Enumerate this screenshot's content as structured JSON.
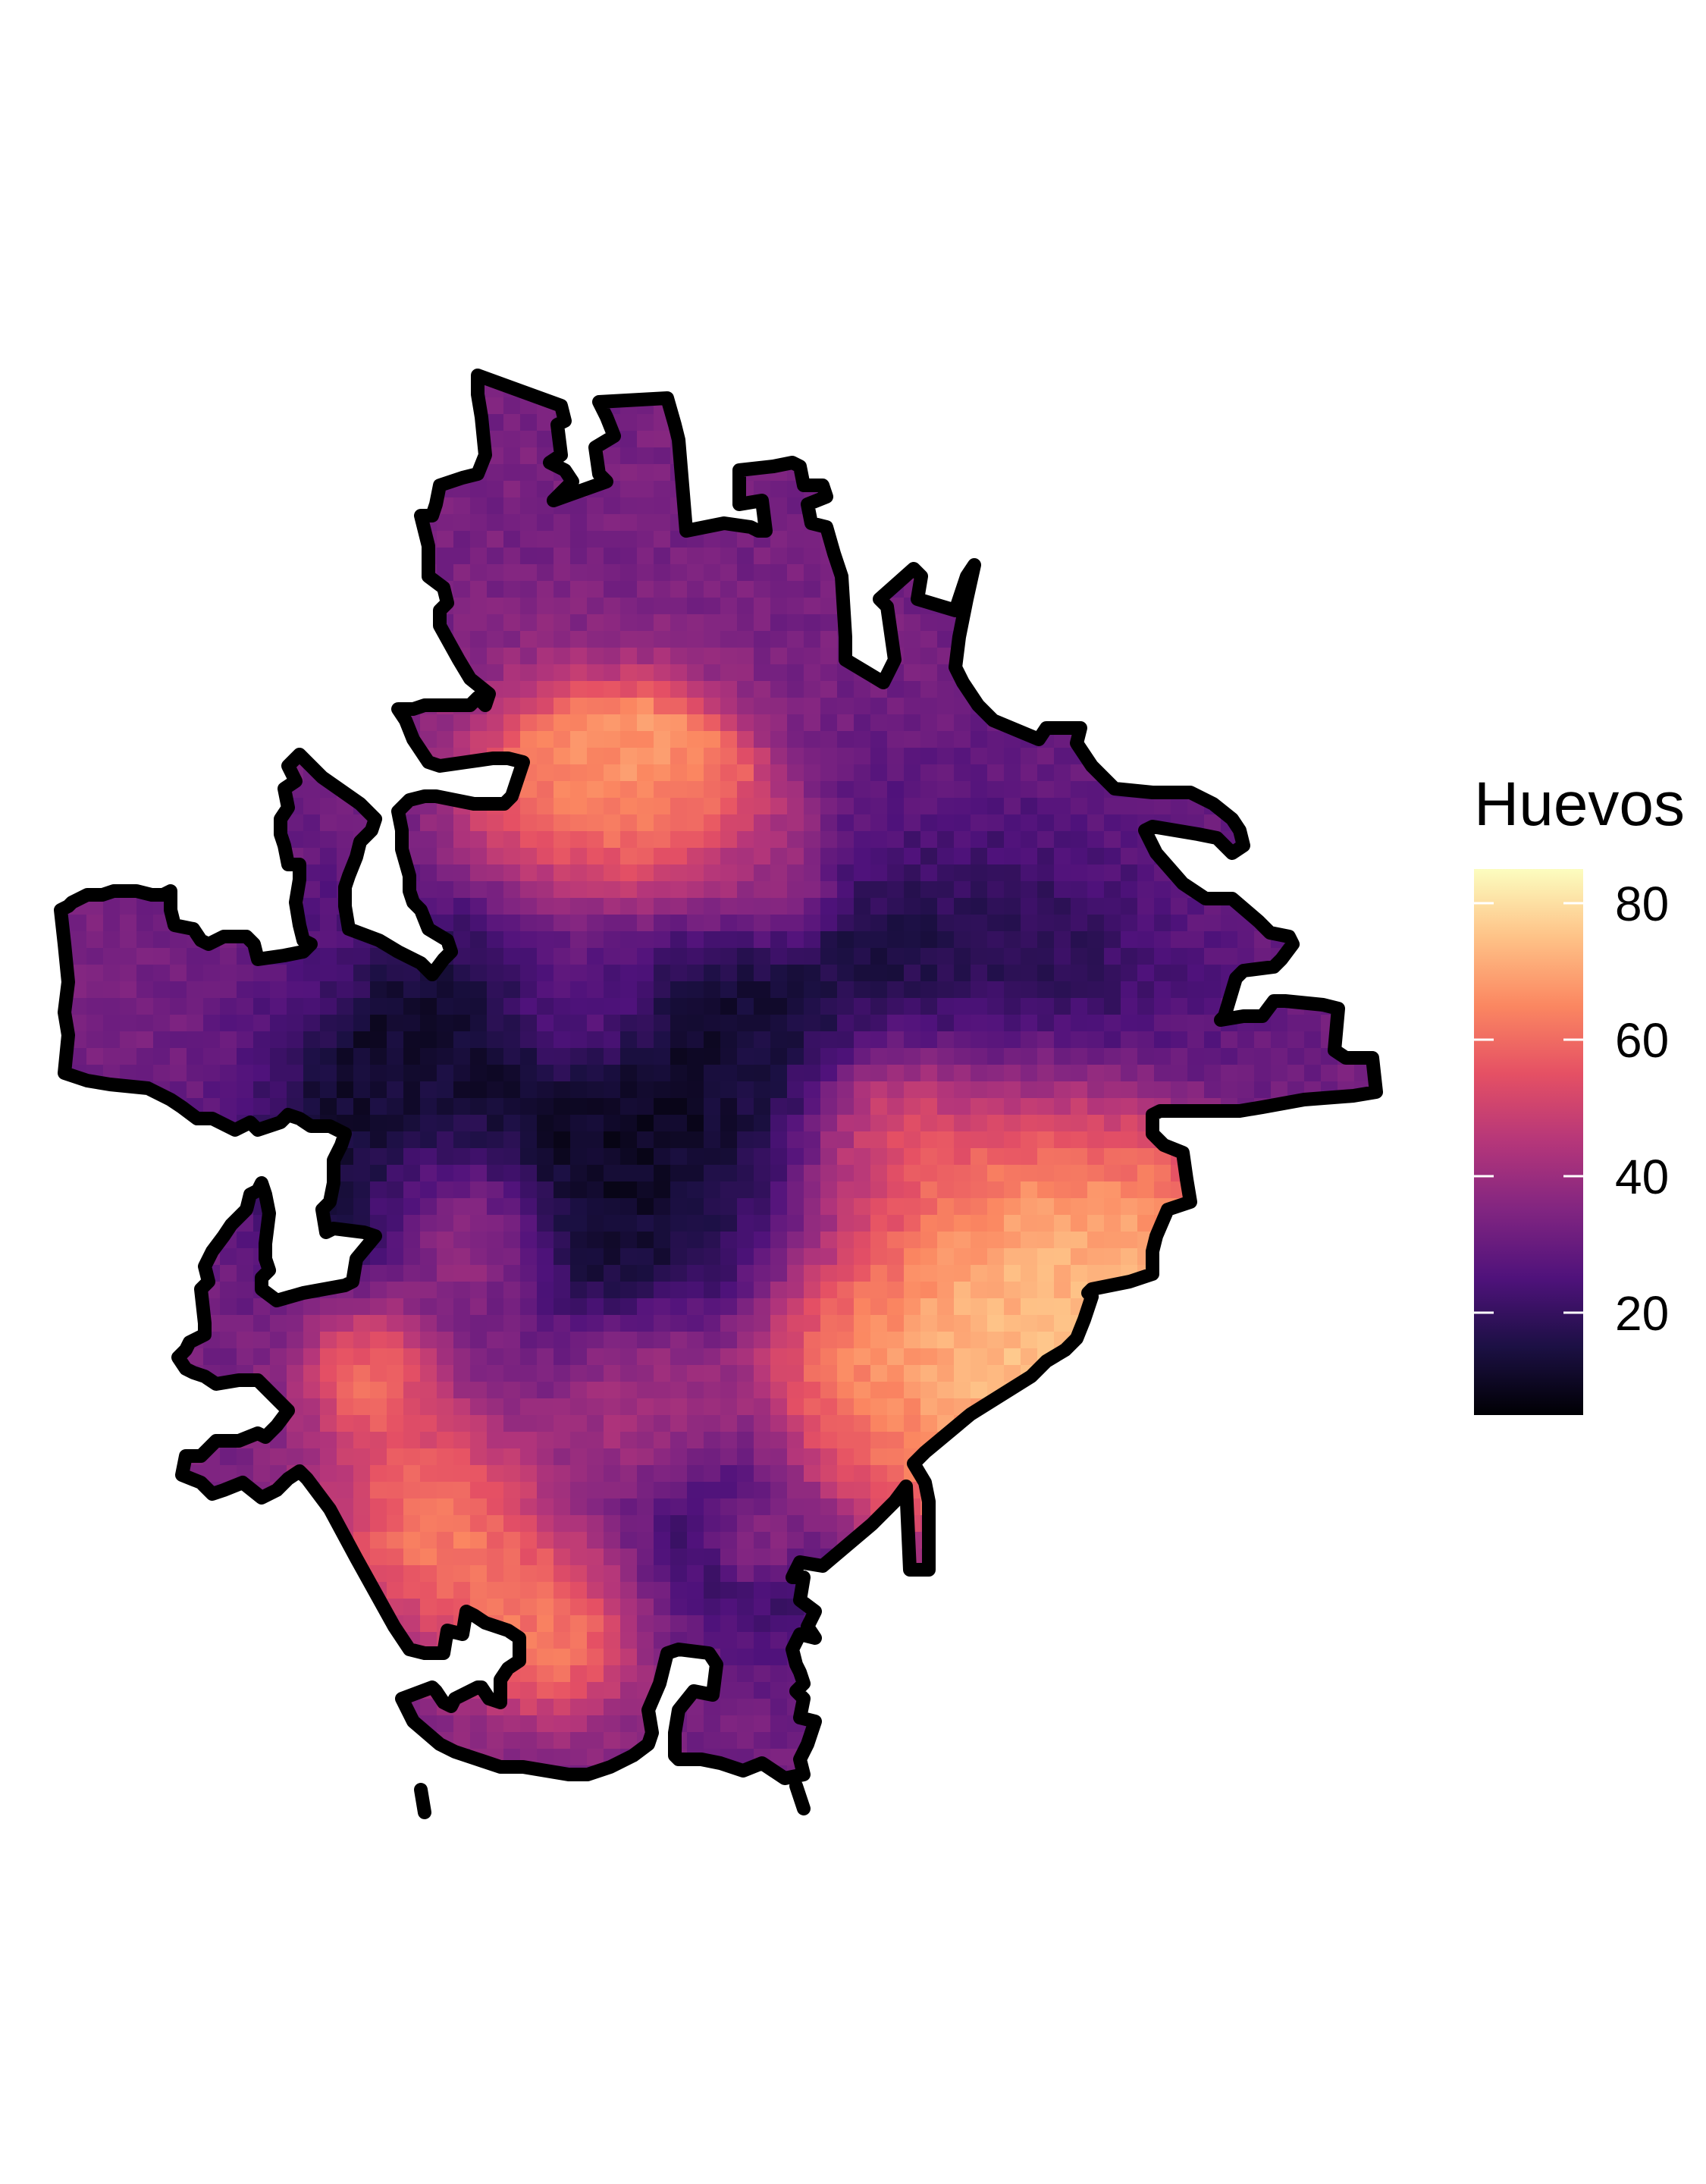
{
  "legend": {
    "title": "Huevos",
    "ticks": [
      {
        "value": 80,
        "label": "80"
      },
      {
        "value": 60,
        "label": "60"
      },
      {
        "value": 40,
        "label": "40"
      },
      {
        "value": 20,
        "label": "20"
      }
    ],
    "range": [
      5,
      85
    ],
    "palette": "magma",
    "stops": [
      "#000004",
      "#1c1044",
      "#4f127b",
      "#812581",
      "#b5367a",
      "#e55064",
      "#fb8761",
      "#fec287",
      "#fcfdbf"
    ]
  },
  "map": {
    "type": "heatmap",
    "outline_color": "#000000",
    "dominant_value": 33,
    "hotspots": [
      {
        "area": "north-center",
        "value": 72
      },
      {
        "area": "east-center",
        "value": 80
      },
      {
        "area": "east-corridor",
        "value": 66
      },
      {
        "area": "south-center",
        "value": 74
      },
      {
        "area": "southwest",
        "value": 62
      }
    ],
    "coldspots": [
      {
        "area": "central-band",
        "value": 12
      },
      {
        "area": "center",
        "value": 6
      },
      {
        "area": "south-center",
        "value": 14
      }
    ]
  }
}
